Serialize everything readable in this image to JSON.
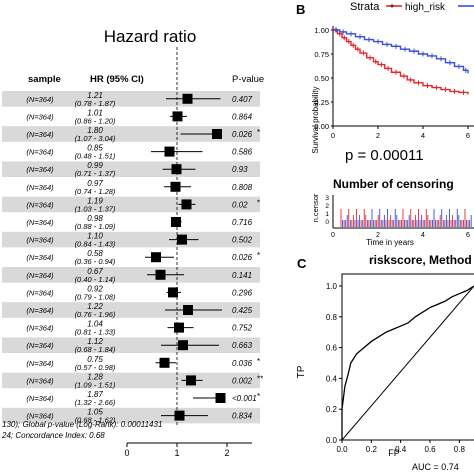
{
  "forest": {
    "title": "Hazard ratio",
    "col_sample": "sample",
    "col_hr": "HR (95% CI)",
    "col_p": "P-value",
    "footer_1": "130); Global p-value (Log-Rank): 0.00011431",
    "footer_2": "24; Concordance Index: 0.68",
    "axis_ticks": [
      "0",
      "1",
      "2"
    ]
  },
  "km": {
    "panel_letter": "B",
    "strata_label": "Strata",
    "strata_name": "high_risk",
    "ylabel": "Survival probability",
    "yticks": [
      "1.00",
      "0.75",
      "0.50",
      "0.25",
      "0.00"
    ],
    "xticks": [
      "0",
      "2",
      "4",
      "6"
    ],
    "pvalue": "p = 0.00011",
    "censor_title": "Number of censoring",
    "censor_ylabel": "n.censor",
    "censor_yticks": [
      "3",
      "2",
      "1",
      "0"
    ],
    "censor_xticks": [
      "0",
      "2",
      "4",
      "6"
    ],
    "censor_xlabel": "Time in years",
    "colors": {
      "high_risk": "#e8262a",
      "low_risk": "#3a4fd8"
    }
  },
  "roc": {
    "panel_letter": "C",
    "title": "riskscore, Method =",
    "ylabel": "TP",
    "xlabel": "FP",
    "yticks": [
      "1.0",
      "0.8",
      "0.6",
      "0.4",
      "0.2",
      "0.0"
    ],
    "xticks": [
      "0.0",
      "0.2",
      "0.4",
      "0.6",
      "0.8"
    ],
    "auc": "AUC = 0.74"
  },
  "chart_data": [
    {
      "type": "forest",
      "title": "Hazard ratio",
      "xlim": [
        0,
        2.5
      ],
      "reference_line": 1,
      "rows": [
        {
          "sample": "(N=364)",
          "hr": 1.21,
          "ci_label": "(0.78 - 1.87)",
          "lo": 0.78,
          "hi": 1.87,
          "p": "0.407",
          "star": ""
        },
        {
          "sample": "(N=364)",
          "hr": 1.01,
          "ci_label": "(0.86 - 1.20)",
          "lo": 0.86,
          "hi": 1.2,
          "p": "0.864",
          "star": ""
        },
        {
          "sample": "(N=364)",
          "hr": 1.8,
          "ci_label": "(1.07 - 3.04)",
          "lo": 1.07,
          "hi": 3.04,
          "p": "0.026",
          "star": "*"
        },
        {
          "sample": "(N=364)",
          "hr": 0.85,
          "ci_label": "(0.48 - 1.51)",
          "lo": 0.48,
          "hi": 1.51,
          "p": "0.586",
          "star": ""
        },
        {
          "sample": "(N=364)",
          "hr": 0.99,
          "ci_label": "(0.71 - 1.37)",
          "lo": 0.71,
          "hi": 1.37,
          "p": "0.93",
          "star": ""
        },
        {
          "sample": "(N=364)",
          "hr": 0.97,
          "ci_label": "(0.74 - 1.28)",
          "lo": 0.74,
          "hi": 1.28,
          "p": "0.808",
          "star": ""
        },
        {
          "sample": "(N=364)",
          "hr": 1.19,
          "ci_label": "(1.03 - 1.37)",
          "lo": 1.03,
          "hi": 1.37,
          "p": "0.02",
          "star": "*"
        },
        {
          "sample": "(N=364)",
          "hr": 0.98,
          "ci_label": "(0.88 - 1.09)",
          "lo": 0.88,
          "hi": 1.09,
          "p": "0.716",
          "star": ""
        },
        {
          "sample": "(N=364)",
          "hr": 1.1,
          "ci_label": "(0.84 - 1.43)",
          "lo": 0.84,
          "hi": 1.43,
          "p": "0.502",
          "star": ""
        },
        {
          "sample": "(N=364)",
          "hr": 0.58,
          "ci_label": "(0.36 - 0.94)",
          "lo": 0.36,
          "hi": 0.94,
          "p": "0.026",
          "star": "*"
        },
        {
          "sample": "(N=364)",
          "hr": 0.67,
          "ci_label": "(0.40 - 1.14)",
          "lo": 0.4,
          "hi": 1.14,
          "p": "0.141",
          "star": ""
        },
        {
          "sample": "(N=364)",
          "hr": 0.92,
          "ci_label": "(0.79 - 1.08)",
          "lo": 0.79,
          "hi": 1.08,
          "p": "0.296",
          "star": ""
        },
        {
          "sample": "(N=364)",
          "hr": 1.22,
          "ci_label": "(0.76 - 1.96)",
          "lo": 0.76,
          "hi": 1.96,
          "p": "0.425",
          "star": ""
        },
        {
          "sample": "(N=364)",
          "hr": 1.04,
          "ci_label": "(0.81 - 1.33)",
          "lo": 0.81,
          "hi": 1.33,
          "p": "0.752",
          "star": ""
        },
        {
          "sample": "(N=364)",
          "hr": 1.12,
          "ci_label": "(0.68 - 1.84)",
          "lo": 0.68,
          "hi": 1.84,
          "p": "0.663",
          "star": ""
        },
        {
          "sample": "(N=364)",
          "hr": 0.75,
          "ci_label": "(0.57 - 0.98)",
          "lo": 0.57,
          "hi": 0.98,
          "p": "0.036",
          "star": "*"
        },
        {
          "sample": "(N=364)",
          "hr": 1.28,
          "ci_label": "(1.09 - 1.51)",
          "lo": 1.09,
          "hi": 1.51,
          "p": "0.002",
          "star": "**"
        },
        {
          "sample": "(N=364)",
          "hr": 1.87,
          "ci_label": "(1.32 - 2.66)",
          "lo": 1.32,
          "hi": 2.66,
          "p": "<0.001",
          "star": "*"
        },
        {
          "sample": "(N=364)",
          "hr": 1.05,
          "ci_label": "(0.68 - 1.62)",
          "lo": 0.68,
          "hi": 1.62,
          "p": "0.834",
          "star": ""
        }
      ]
    },
    {
      "type": "line",
      "title": "",
      "xlabel": "Time in years",
      "ylabel": "Survival probability",
      "xlim": [
        0,
        6
      ],
      "ylim": [
        0,
        1
      ],
      "legend": "top",
      "series": [
        {
          "name": "high_risk",
          "color": "#e8262a",
          "x": [
            0,
            0.2,
            0.4,
            0.6,
            0.8,
            1.0,
            1.2,
            1.5,
            1.8,
            2.0,
            2.3,
            2.6,
            3.0,
            3.3,
            3.6,
            4.0,
            4.4,
            4.8,
            5.2,
            5.6,
            6.0
          ],
          "y": [
            1.0,
            0.96,
            0.92,
            0.88,
            0.84,
            0.8,
            0.76,
            0.71,
            0.67,
            0.64,
            0.6,
            0.56,
            0.52,
            0.48,
            0.45,
            0.42,
            0.4,
            0.38,
            0.36,
            0.35,
            0.33
          ]
        },
        {
          "x": [
            0,
            0.3,
            0.6,
            1.0,
            1.4,
            1.8,
            2.2,
            2.6,
            3.0,
            3.4,
            3.8,
            4.2,
            4.6,
            5.0,
            5.4,
            5.8,
            6.0
          ],
          "y": [
            1.0,
            0.98,
            0.96,
            0.93,
            0.9,
            0.88,
            0.85,
            0.83,
            0.8,
            0.78,
            0.75,
            0.73,
            0.7,
            0.66,
            0.62,
            0.58,
            0.55
          ],
          "color": "#3a4fd8"
        }
      ]
    },
    {
      "type": "line",
      "title": "riskscore, Method =",
      "xlabel": "FP",
      "ylabel": "TP",
      "xlim": [
        0,
        0.9
      ],
      "ylim": [
        0,
        1
      ],
      "annotation": "AUC = 0.74",
      "series": [
        {
          "x": [
            0,
            0.0,
            0.02,
            0.04,
            0.06,
            0.1,
            0.15,
            0.2,
            0.25,
            0.3,
            0.35,
            0.4,
            0.45,
            0.5,
            0.55,
            0.6,
            0.65,
            0.7,
            0.75,
            0.8,
            0.85,
            0.9
          ],
          "y": [
            0,
            0.2,
            0.35,
            0.42,
            0.5,
            0.56,
            0.6,
            0.64,
            0.67,
            0.7,
            0.72,
            0.74,
            0.76,
            0.8,
            0.83,
            0.86,
            0.88,
            0.9,
            0.93,
            0.95,
            0.97,
            1.0
          ]
        },
        {
          "x": [
            0,
            0.9
          ],
          "y": [
            0,
            1.0
          ]
        }
      ]
    }
  ]
}
